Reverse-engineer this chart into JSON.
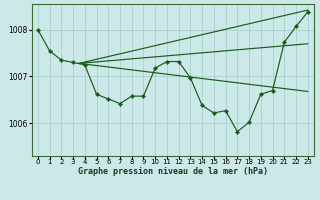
{
  "title": "Graphe pression niveau de la mer (hPa)",
  "bg_color": "#cce8e8",
  "grid_color": "#aacfcf",
  "line_color": "#1a5c1a",
  "marker_color": "#1a5c1a",
  "xlim": [
    -0.5,
    23.5
  ],
  "ylim": [
    1005.3,
    1008.55
  ],
  "yticks": [
    1006,
    1007,
    1008
  ],
  "xticks": [
    0,
    1,
    2,
    3,
    4,
    5,
    6,
    7,
    8,
    9,
    10,
    11,
    12,
    13,
    14,
    15,
    16,
    17,
    18,
    19,
    20,
    21,
    22,
    23
  ],
  "series": [
    {
      "x": [
        0,
        1,
        2,
        3,
        4,
        5,
        6,
        7,
        8,
        9,
        10,
        11,
        12,
        13,
        14,
        15,
        16,
        17,
        18,
        19,
        20,
        21,
        22,
        23
      ],
      "y": [
        1008.0,
        1007.55,
        1007.35,
        1007.3,
        1007.25,
        1006.62,
        1006.52,
        1006.42,
        1006.58,
        1006.58,
        1007.18,
        1007.32,
        1007.32,
        1006.97,
        1006.38,
        1006.22,
        1006.27,
        1005.82,
        1006.02,
        1006.62,
        1006.7,
        1007.73,
        1008.07,
        1008.38
      ]
    },
    {
      "x": [
        3.5,
        23
      ],
      "y": [
        1007.28,
        1008.42
      ]
    },
    {
      "x": [
        3.5,
        23
      ],
      "y": [
        1007.28,
        1007.7
      ]
    },
    {
      "x": [
        3.5,
        23
      ],
      "y": [
        1007.28,
        1006.68
      ]
    }
  ]
}
